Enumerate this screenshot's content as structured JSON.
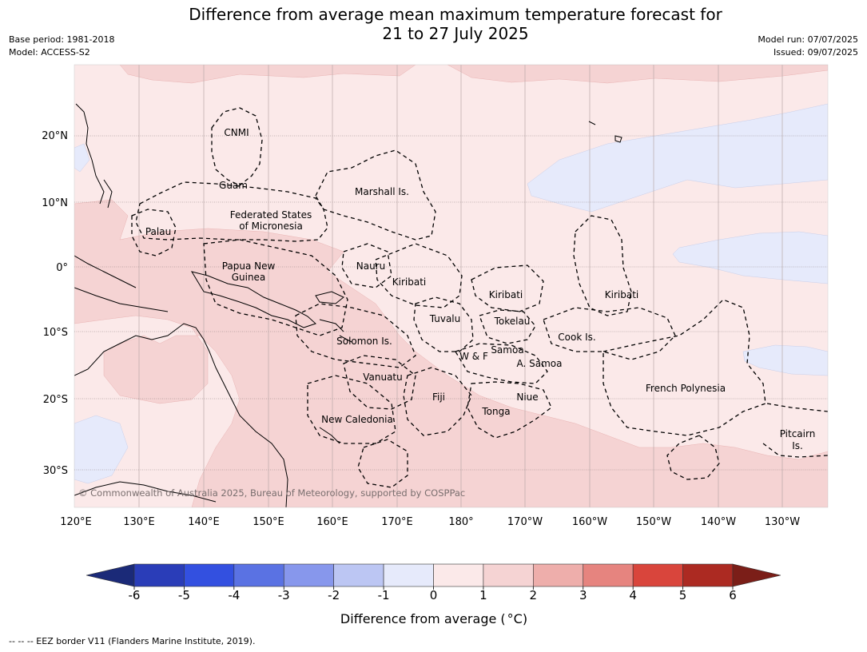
{
  "title": {
    "line1": "Difference from average mean maximum temperature forecast for",
    "line2": "21 to 27 July 2025"
  },
  "meta": {
    "base_period": "Base period: 1981-2018",
    "model": "Model: ACCESS-S2",
    "model_run": "Model run: 07/07/2025",
    "issued": "Issued: 09/07/2025"
  },
  "map": {
    "lon_labels": [
      "120°E",
      "130°E",
      "140°E",
      "150°E",
      "160°E",
      "170°E",
      "180°",
      "170°W",
      "160°W",
      "150°W",
      "140°W",
      "130°W"
    ],
    "lat_labels": [
      "20°N",
      "10°N",
      "0°",
      "10°S",
      "20°S",
      "30°S"
    ],
    "places": {
      "cnmi": "CNMI",
      "guam": "Guam",
      "marshall": "Marshall Is.",
      "fsm1": "Federated States",
      "fsm2": "of Micronesia",
      "palau": "Palau",
      "png1": "Papua New",
      "png2": "Guinea",
      "nauru": "Nauru",
      "kiribati_w": "Kiribati",
      "kiribati_c": "Kiribati",
      "kiribati_e": "Kiribati",
      "tuvalu": "Tuvalu",
      "tokelau": "Tokelau",
      "cook": "Cook Is.",
      "solomon": "Solomon Is.",
      "wf": "W & F",
      "samoa": "Samoa",
      "asamoa": "A. Samoa",
      "vanuatu": "Vanuatu",
      "fiji": "Fiji",
      "niue": "Niue",
      "tonga": "Tonga",
      "frpoly": "French Polynesia",
      "newcal": "New Caledonia",
      "pitcairn1": "Pitcairn",
      "pitcairn2": "Is."
    },
    "copyright": "© Commonwealth of Australia 2025, Bureau of Meteorology, supported by COSPPac"
  },
  "colorbar": {
    "ticks": [
      "-6",
      "-5",
      "-4",
      "-3",
      "-2",
      "-1",
      "0",
      "1",
      "2",
      "3",
      "4",
      "5",
      "6"
    ],
    "colors": {
      "below_min": "#1b2a78",
      "bins": [
        "#2a3db8",
        "#3350e0",
        "#5a72e3",
        "#8797ec",
        "#bcc6f3",
        "#e6eafb",
        "#fbe9e9",
        "#f5d3d3",
        "#eeaeab",
        "#e6847f",
        "#d9453c",
        "#ac2a22"
      ],
      "above_max": "#7b1e18"
    },
    "label": "Difference from average (",
    "label_unit": "°C)"
  },
  "footnote": "--  --  -- EEZ border V11 (Flanders Marine Institute, 2019)."
}
